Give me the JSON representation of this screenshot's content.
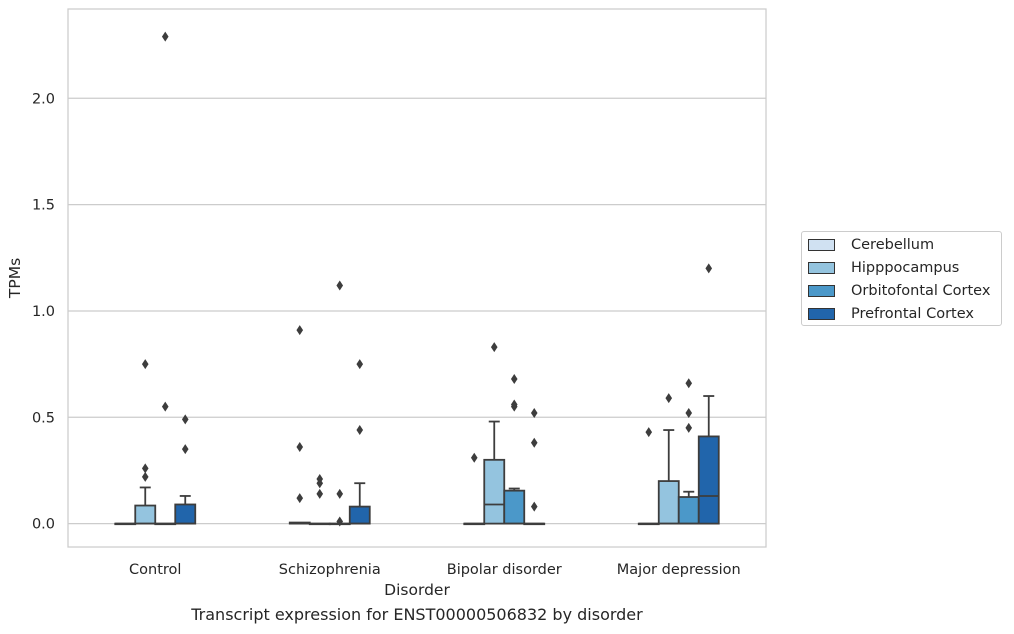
{
  "chart_data": {
    "type": "box",
    "title": "",
    "caption": "Transcript expression for ENST00000506832 by disorder",
    "xlabel": "Disorder",
    "ylabel": "TPMs",
    "ylim": [
      -0.11,
      2.42
    ],
    "yticks": [
      "0.0",
      "0.5",
      "1.0",
      "1.5",
      "2.0"
    ],
    "grid": "horizontal",
    "legend_placement": "right",
    "categories": [
      "Control",
      "Schizophrenia",
      "Bipolar disorder",
      "Major depression"
    ],
    "series": [
      {
        "name": "Cerebellum",
        "color": "#d0e1f2",
        "boxes": [
          {
            "q1": 0,
            "median": 0,
            "q3": 0,
            "whisker_low": 0,
            "whisker_high": 0,
            "outliers": []
          },
          {
            "q1": 0,
            "median": 0,
            "q3": 0.005,
            "whisker_low": 0,
            "whisker_high": 0.005,
            "outliers": [
              0.12,
              0.36,
              0.91
            ]
          },
          {
            "q1": 0,
            "median": 0,
            "q3": 0,
            "whisker_low": 0,
            "whisker_high": 0,
            "outliers": [
              0.31
            ]
          },
          {
            "q1": 0,
            "median": 0,
            "q3": 0,
            "whisker_low": 0,
            "whisker_high": 0,
            "outliers": [
              0.43
            ]
          }
        ]
      },
      {
        "name": "Hipppocampus",
        "color": "#94c4df",
        "boxes": [
          {
            "q1": 0,
            "median": 0,
            "q3": 0.085,
            "whisker_low": 0,
            "whisker_high": 0.17,
            "outliers": [
              0.22,
              0.26,
              0.75
            ]
          },
          {
            "q1": 0,
            "median": 0,
            "q3": 0,
            "whisker_low": 0,
            "whisker_high": 0,
            "outliers": [
              0.14,
              0.19,
              0.21
            ]
          },
          {
            "q1": 0,
            "median": 0.09,
            "q3": 0.3,
            "whisker_low": 0,
            "whisker_high": 0.48,
            "outliers": [
              0.83
            ]
          },
          {
            "q1": 0,
            "median": 0,
            "q3": 0.2,
            "whisker_low": 0,
            "whisker_high": 0.44,
            "outliers": [
              0.59
            ]
          }
        ]
      },
      {
        "name": "Orbitofontal Cortex",
        "color": "#4b98c9",
        "boxes": [
          {
            "q1": 0,
            "median": 0,
            "q3": 0,
            "whisker_low": 0,
            "whisker_high": 0,
            "outliers": [
              0.55,
              2.29
            ]
          },
          {
            "q1": 0,
            "median": 0,
            "q3": 0,
            "whisker_low": 0,
            "whisker_high": 0,
            "outliers": [
              0.01,
              0.14,
              1.12
            ]
          },
          {
            "q1": 0,
            "median": 0,
            "q3": 0.155,
            "whisker_low": 0,
            "whisker_high": 0.165,
            "outliers": [
              0.55,
              0.56,
              0.68
            ]
          },
          {
            "q1": 0,
            "median": 0,
            "q3": 0.125,
            "whisker_low": 0,
            "whisker_high": 0.15,
            "outliers": [
              0.45,
              0.52,
              0.66
            ]
          }
        ]
      },
      {
        "name": "Prefrontal Cortex",
        "color": "#2165ab",
        "boxes": [
          {
            "q1": 0,
            "median": 0,
            "q3": 0.09,
            "whisker_low": 0,
            "whisker_high": 0.13,
            "outliers": [
              0.35,
              0.49
            ]
          },
          {
            "q1": 0,
            "median": 0,
            "q3": 0.08,
            "whisker_low": 0,
            "whisker_high": 0.19,
            "outliers": [
              0.44,
              0.75
            ]
          },
          {
            "q1": 0,
            "median": 0,
            "q3": 0,
            "whisker_low": 0,
            "whisker_high": 0,
            "outliers": [
              0.08,
              0.38,
              0.52
            ]
          },
          {
            "q1": 0,
            "median": 0.13,
            "q3": 0.41,
            "whisker_low": 0,
            "whisker_high": 0.6,
            "outliers": [
              1.2
            ]
          }
        ]
      }
    ]
  }
}
